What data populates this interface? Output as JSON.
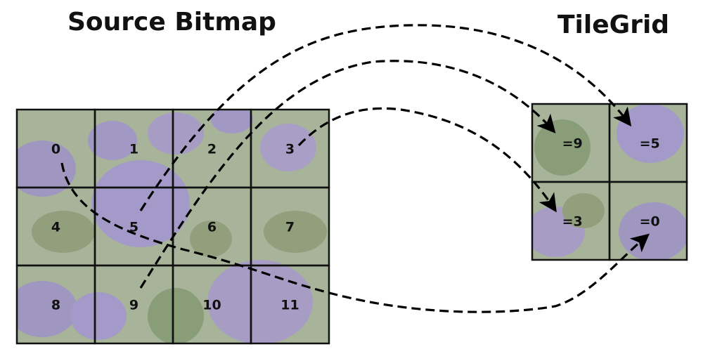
{
  "titles": {
    "source": "Source Bitmap",
    "tilegrid": "TileGrid"
  },
  "source_bitmap": {
    "columns": 4,
    "rows": 3,
    "tiles": [
      "0",
      "1",
      "2",
      "3",
      "4",
      "5",
      "6",
      "7",
      "8",
      "9",
      "10",
      "11"
    ]
  },
  "tilegrid": {
    "columns": 2,
    "rows": 2,
    "cells": [
      {
        "label": "=9",
        "source_index": 9
      },
      {
        "label": "=5",
        "source_index": 5
      },
      {
        "label": "=3",
        "source_index": 3
      },
      {
        "label": "=0",
        "source_index": 0
      }
    ]
  },
  "colors": {
    "grid_line": "#111111",
    "arrow": "#000000",
    "flower_purple": "#9a7fe0",
    "foliage_green": "#6e8a5c"
  },
  "image_description": "photo of purple aster flowers with green foliage"
}
